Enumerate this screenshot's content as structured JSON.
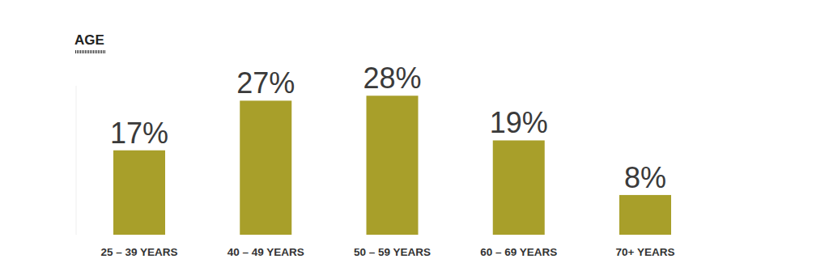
{
  "chart_data": {
    "type": "bar",
    "title": "AGE",
    "categories": [
      "25 – 39 YEARS",
      "40 – 49 YEARS",
      "50 – 59 YEARS",
      "60 – 69 YEARS",
      "70+ YEARS"
    ],
    "values": [
      17,
      27,
      28,
      19,
      8
    ],
    "value_labels": [
      "17%",
      "27%",
      "28%",
      "19%",
      "8%"
    ],
    "color": "#a89f2a",
    "ylim": [
      0,
      30
    ],
    "grid": false,
    "data_labels": true,
    "tick_labels": "x"
  }
}
